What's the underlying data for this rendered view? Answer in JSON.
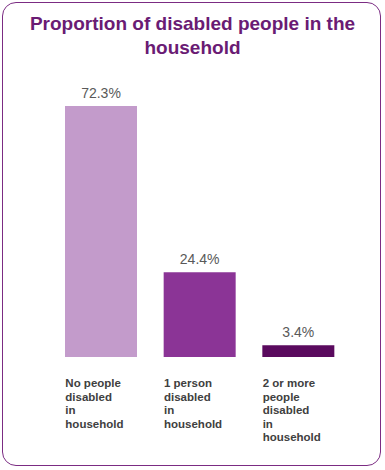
{
  "chart_data": {
    "type": "bar",
    "title": "Proportion of disabled people in the household",
    "categories": [
      "No people disabled in household",
      "1 person disabled in household",
      "2 or more people disabled in household"
    ],
    "values": [
      72.3,
      24.4,
      3.4
    ],
    "value_labels": [
      "72.3%",
      "24.4%",
      "3.4%"
    ],
    "colors": [
      "#c39bcb",
      "#8b3496",
      "#5a0a5e"
    ],
    "data_labels": true,
    "tick_labels": "x",
    "grid": false
  }
}
